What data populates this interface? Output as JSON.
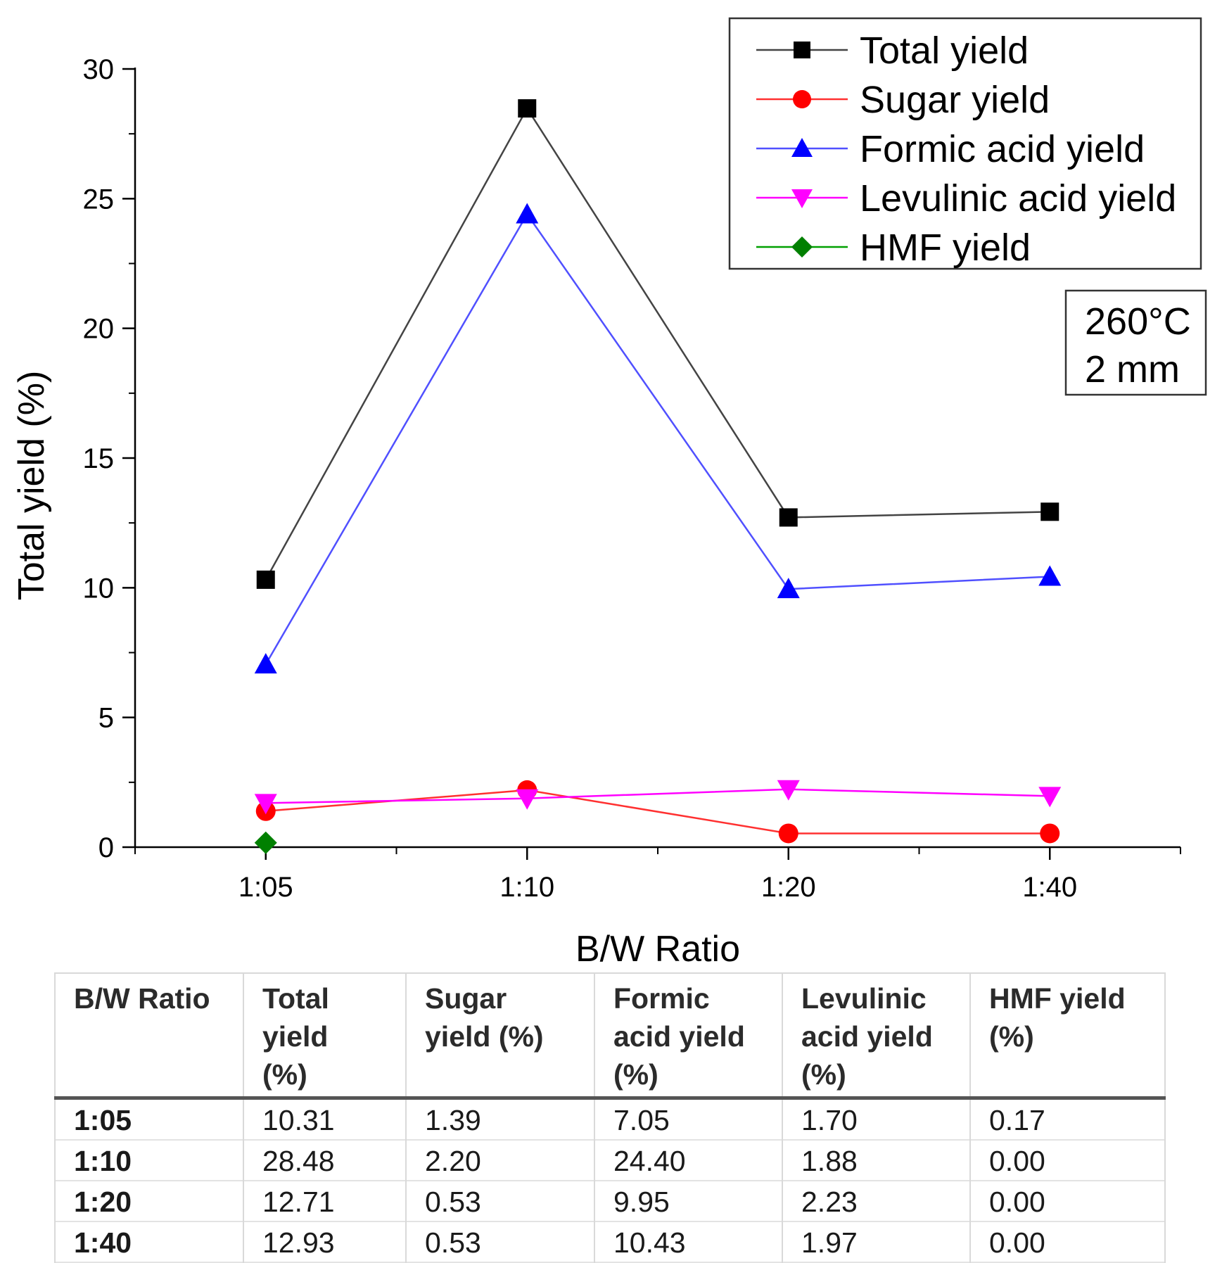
{
  "chart_data": {
    "type": "line",
    "categories": [
      "1:05",
      "1:10",
      "1:20",
      "1:40"
    ],
    "xlabel": "B/W Ratio",
    "ylabel": "Total yield (%)",
    "ylim": [
      0,
      30
    ],
    "yticks": [
      0,
      5,
      10,
      15,
      20,
      25,
      30
    ],
    "grid": false,
    "legend_position": "top-right",
    "annotation": [
      "260°C",
      "2 mm"
    ],
    "series": [
      {
        "name": "Total yield",
        "color": "#000000",
        "line_color": "#444444",
        "marker": "square",
        "values": [
          10.31,
          28.48,
          12.71,
          12.93
        ]
      },
      {
        "name": "Sugar yield",
        "color": "#ff0000",
        "line_color": "#ff3030",
        "marker": "circle",
        "values": [
          1.39,
          2.2,
          0.53,
          0.53
        ]
      },
      {
        "name": "Formic acid yield",
        "color": "#0000ff",
        "line_color": "#5050ff",
        "marker": "triangle-up",
        "values": [
          7.05,
          24.4,
          9.95,
          10.43
        ]
      },
      {
        "name": "Levulinic acid yield",
        "color": "#ff00ff",
        "line_color": "#ff00ff",
        "marker": "triangle-down",
        "values": [
          1.7,
          1.88,
          2.23,
          1.97
        ]
      },
      {
        "name": "HMF yield",
        "color": "#008000",
        "line_color": "#00a000",
        "marker": "diamond",
        "values": [
          0.17,
          null,
          null,
          null
        ]
      }
    ]
  },
  "table": {
    "headers": [
      [
        "B/W Ratio"
      ],
      [
        "Total",
        "yield",
        "(%)"
      ],
      [
        "Sugar",
        "yield (%)"
      ],
      [
        "Formic",
        "acid yield",
        "(%)"
      ],
      [
        "Levulinic",
        "acid yield",
        "(%)"
      ],
      [
        "HMF yield",
        "(%)"
      ]
    ],
    "rows": [
      [
        "1:05",
        "10.31",
        "1.39",
        "7.05",
        "1.70",
        "0.17"
      ],
      [
        "1:10",
        "28.48",
        "2.20",
        "24.40",
        "1.88",
        "0.00"
      ],
      [
        "1:20",
        "12.71",
        "0.53",
        "9.95",
        "2.23",
        "0.00"
      ],
      [
        "1:40",
        "12.93",
        "0.53",
        "10.43",
        "1.97",
        "0.00"
      ]
    ]
  }
}
